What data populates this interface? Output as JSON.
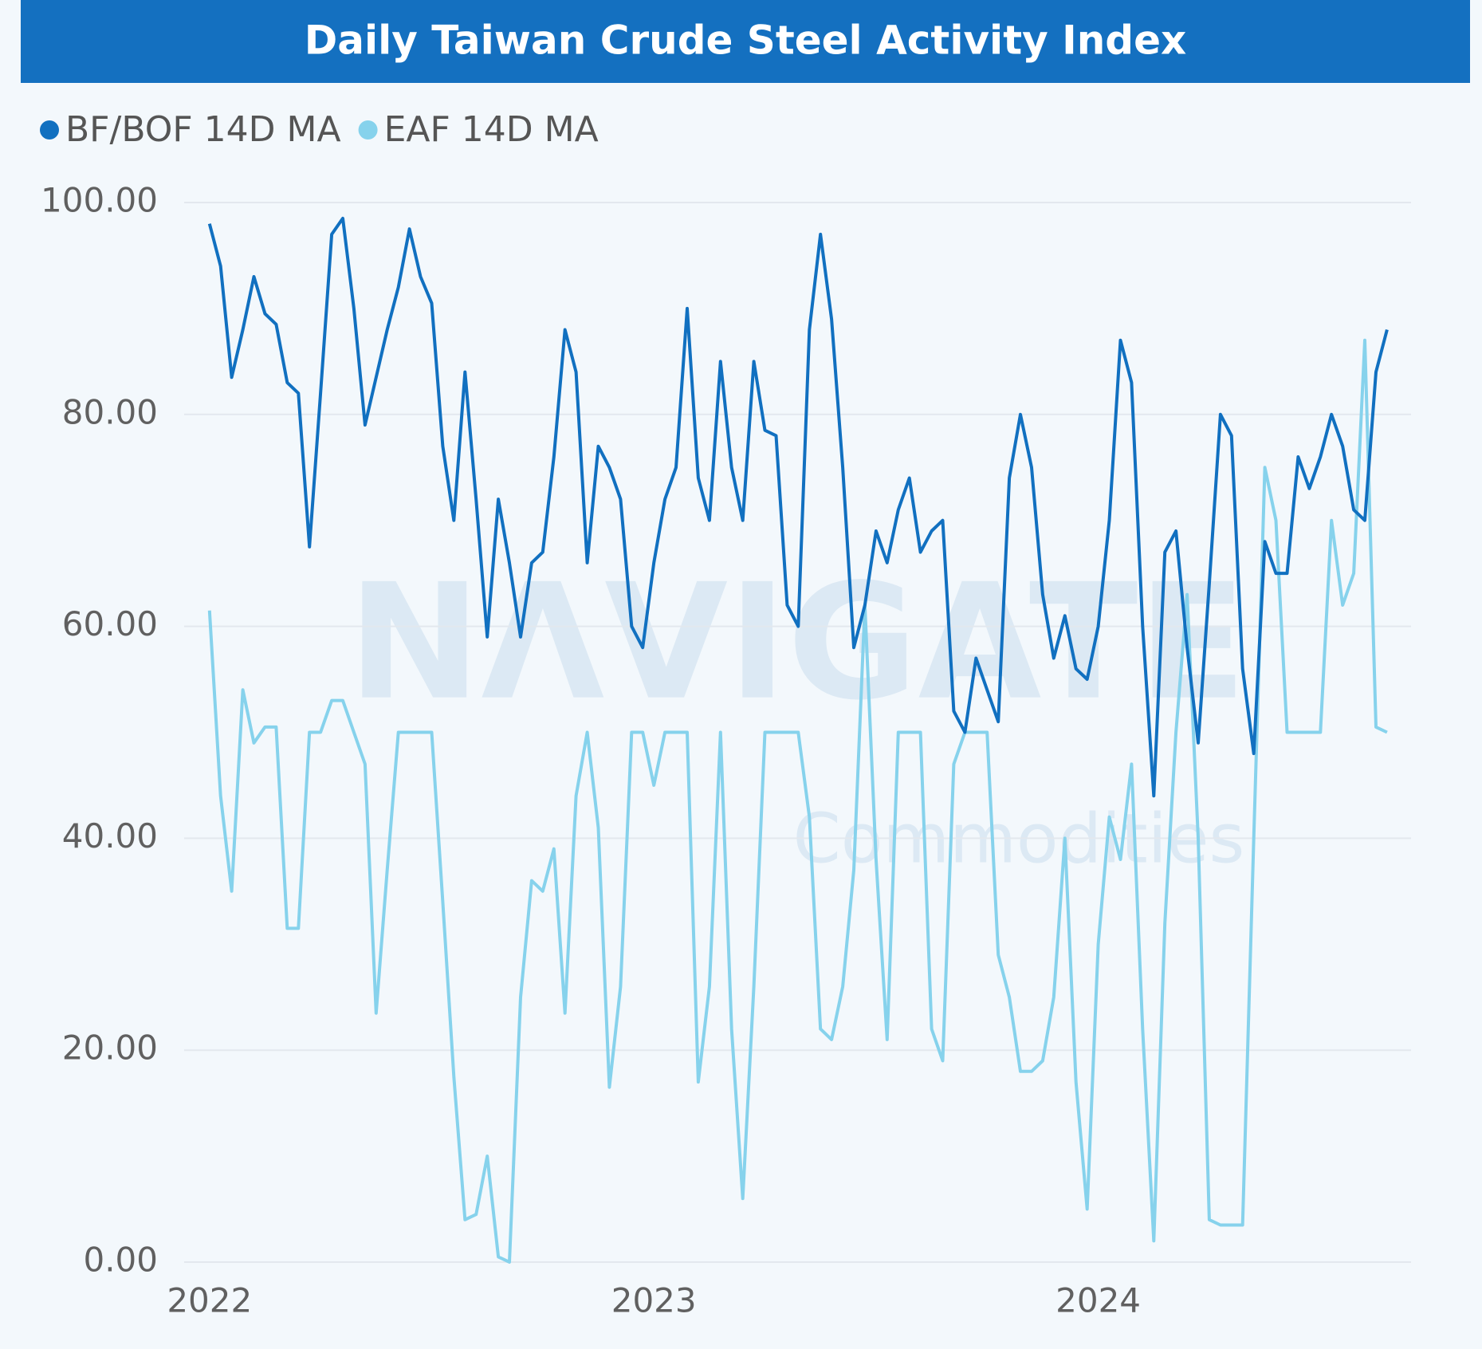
{
  "chart_data": {
    "type": "line",
    "title": "Daily Taiwan Crude Steel Activity Index",
    "watermark": [
      "NΛVIGATE",
      "Commodities"
    ],
    "legend": "top-left",
    "grid": true,
    "xlim": [
      2021.943,
      2024.704
    ],
    "xticks": [
      2022,
      2023,
      2024
    ],
    "ylim": [
      0,
      100
    ],
    "yticks": [
      {
        "value": 0,
        "label": "0.00"
      },
      {
        "value": 20,
        "label": "20.00"
      },
      {
        "value": 40,
        "label": "40.00"
      },
      {
        "value": 60,
        "label": "60.00"
      },
      {
        "value": 80,
        "label": "80.00"
      },
      {
        "value": 100,
        "label": "100.00"
      }
    ],
    "x": [
      2022,
      2022.025,
      2022.05,
      2022.075,
      2022.1,
      2022.125,
      2022.15,
      2022.175,
      2022.2,
      2022.225,
      2022.25,
      2022.275,
      2022.3,
      2022.325,
      2022.35,
      2022.375,
      2022.4,
      2022.425,
      2022.45,
      2022.475,
      2022.5,
      2022.525,
      2022.55,
      2022.575,
      2022.6,
      2022.625,
      2022.65,
      2022.675,
      2022.7,
      2022.725,
      2022.75,
      2022.775,
      2022.8,
      2022.825,
      2022.85,
      2022.875,
      2022.9,
      2022.925,
      2022.95,
      2022.975,
      2023,
      2023.025,
      2023.05,
      2023.075,
      2023.1,
      2023.125,
      2023.15,
      2023.175,
      2023.2,
      2023.225,
      2023.25,
      2023.275,
      2023.3,
      2023.325,
      2023.35,
      2023.375,
      2023.4,
      2023.425,
      2023.45,
      2023.475,
      2023.5,
      2023.525,
      2023.55,
      2023.575,
      2023.6,
      2023.625,
      2023.65,
      2023.675,
      2023.7,
      2023.725,
      2023.75,
      2023.775,
      2023.8,
      2023.825,
      2023.85,
      2023.875,
      2023.9,
      2023.925,
      2023.95,
      2023.975,
      2024,
      2024.025,
      2024.05,
      2024.075,
      2024.1,
      2024.125,
      2024.15,
      2024.175,
      2024.2,
      2024.225,
      2024.25,
      2024.275,
      2024.3,
      2024.325,
      2024.35,
      2024.375,
      2024.4,
      2024.425,
      2024.45,
      2024.475,
      2024.5,
      2024.525,
      2024.55,
      2024.575,
      2024.6,
      2024.625,
      2024.65
    ],
    "series": [
      {
        "name": "BF/BOF 14D MA",
        "color": "#1170c0",
        "values": [
          98,
          94,
          83.5,
          88,
          93,
          89.5,
          88.5,
          83,
          82,
          67.5,
          82,
          97,
          98.5,
          90,
          79,
          83.5,
          88,
          92,
          97.5,
          93,
          90.5,
          77,
          70,
          84,
          72,
          59,
          72,
          66,
          59,
          66,
          67,
          76,
          88,
          84,
          66,
          77,
          75,
          72,
          60,
          58,
          66,
          72,
          75,
          90,
          74,
          70,
          85,
          75,
          70,
          85,
          78.5,
          78,
          62,
          60,
          88,
          97,
          89,
          75,
          58,
          62,
          69,
          66,
          71,
          74,
          67,
          69,
          70,
          52,
          50,
          57,
          54,
          51,
          74,
          80,
          75,
          63,
          57,
          61,
          56,
          55,
          60,
          70,
          87,
          83,
          60,
          44,
          67,
          69,
          58,
          49,
          64,
          80,
          78,
          56,
          48,
          68,
          65,
          65,
          76,
          73,
          76,
          80,
          77,
          71,
          70,
          84,
          88
        ]
      },
      {
        "name": "EAF 14D MA",
        "color": "#86d2ec",
        "values": [
          61.5,
          44,
          35,
          54,
          49,
          50.5,
          50.5,
          31.5,
          31.5,
          50,
          50,
          53,
          53,
          50,
          47,
          23.5,
          37,
          50,
          50,
          50,
          50,
          34,
          17.5,
          4,
          4.5,
          10,
          0.5,
          0,
          25,
          36,
          35,
          39,
          23.5,
          44,
          50,
          41,
          16.5,
          26,
          50,
          50,
          45,
          50,
          50,
          50,
          17,
          26,
          50,
          22,
          6,
          26,
          50,
          50,
          50,
          50,
          42,
          22,
          21,
          26,
          37,
          62,
          38,
          21,
          50,
          50,
          50,
          22,
          19,
          47,
          50,
          50,
          50,
          29,
          25,
          18,
          18,
          19,
          25,
          40,
          17,
          5,
          30,
          42,
          38,
          47,
          22,
          2,
          32,
          50,
          63,
          40,
          4,
          3.5,
          3.5,
          3.5,
          40,
          75,
          70,
          50,
          50,
          50,
          50,
          70,
          62,
          65,
          87,
          50.5,
          50
        ]
      }
    ]
  }
}
